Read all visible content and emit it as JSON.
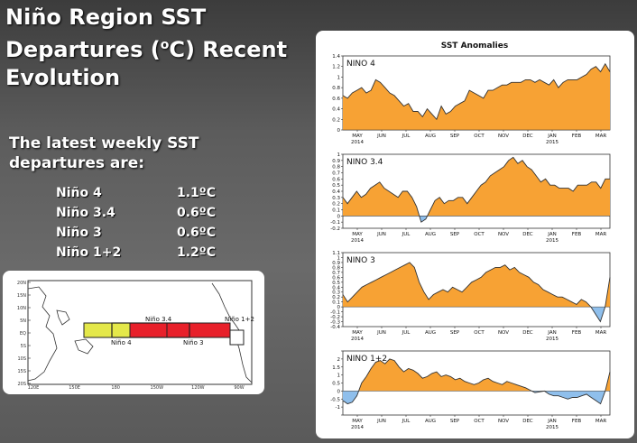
{
  "slide": {
    "title_line1": "Niño Region SST",
    "title_line2_pre": "Departures (",
    "title_line2_sup": "o",
    "title_line2_post": "C) Recent",
    "title_line3": "Evolution",
    "subtitle_line1": "The latest weekly SST",
    "subtitle_line2": "departures are:"
  },
  "departures": [
    {
      "region": "Niño 4",
      "value": "1.1ºC"
    },
    {
      "region": "Niño 3.4",
      "value": "0.6ºC"
    },
    {
      "region": "Niño 3",
      "value": "0.6ºC"
    },
    {
      "region": "Niño 1+2",
      "value": "1.2ºC"
    }
  ],
  "map": {
    "lat_labels": [
      "20N",
      "15N",
      "10N",
      "5N",
      "EQ",
      "5S",
      "10S",
      "15S",
      "20S"
    ],
    "lon_labels": [
      "120E",
      "150E",
      "180",
      "150W",
      "120W",
      "90W"
    ],
    "regions": [
      {
        "name": "Niño 4",
        "color": "#e4e84a"
      },
      {
        "name": "Niño 3.4",
        "color": "#00000000"
      },
      {
        "name": "Niño 3",
        "color": "#e8202a"
      },
      {
        "name": "Niño 1+2",
        "color": "#ffffff"
      }
    ]
  },
  "colors": {
    "positive": "#f7a234",
    "negative": "#8fbfec",
    "line": "#333333"
  },
  "chart_data": [
    {
      "type": "area",
      "title": "SST Anomalies",
      "panel_label": "NINO 4",
      "xticks": [
        "MAY",
        "JUN",
        "JUL",
        "AUG",
        "SEP",
        "OCT",
        "NOV",
        "DEC",
        "JAN",
        "FEB",
        "MAR"
      ],
      "year_labels": [
        "2014",
        "2015"
      ],
      "ylim": [
        0,
        1.4
      ],
      "yticks": [
        0,
        0.2,
        0.4,
        0.6,
        0.8,
        1,
        1.2,
        1.4
      ],
      "ytick_labels": [
        "0",
        "0.2",
        "0.4",
        "0.6",
        "0.8",
        "1",
        "1.2",
        "1.4"
      ],
      "values": [
        0.65,
        0.6,
        0.7,
        0.75,
        0.8,
        0.7,
        0.75,
        0.95,
        0.9,
        0.8,
        0.7,
        0.65,
        0.55,
        0.45,
        0.5,
        0.35,
        0.35,
        0.25,
        0.4,
        0.3,
        0.2,
        0.45,
        0.3,
        0.35,
        0.45,
        0.5,
        0.55,
        0.75,
        0.7,
        0.65,
        0.6,
        0.75,
        0.75,
        0.8,
        0.85,
        0.85,
        0.9,
        0.9,
        0.9,
        0.95,
        0.95,
        0.9,
        0.95,
        0.9,
        0.85,
        0.95,
        0.8,
        0.9,
        0.95,
        0.95,
        0.95,
        1.0,
        1.05,
        1.15,
        1.2,
        1.1,
        1.25,
        1.1
      ]
    },
    {
      "type": "area",
      "panel_label": "NINO 3.4",
      "xticks": [
        "MAY",
        "JUN",
        "JUL",
        "AUG",
        "SEP",
        "OCT",
        "NOV",
        "DEC",
        "JAN",
        "FEB",
        "MAR"
      ],
      "year_labels": [
        "2014",
        "2015"
      ],
      "ylim": [
        -0.2,
        1
      ],
      "yticks": [
        -0.2,
        -0.1,
        0,
        0.1,
        0.2,
        0.3,
        0.4,
        0.5,
        0.6,
        0.7,
        0.8,
        0.9,
        1
      ],
      "ytick_labels": [
        "-0.2",
        "-0.1",
        "0",
        "0.1",
        "0.2",
        "0.3",
        "0.4",
        "0.5",
        "0.6",
        "0.7",
        "0.8",
        "0.9",
        "1"
      ],
      "values": [
        0.3,
        0.2,
        0.3,
        0.4,
        0.3,
        0.35,
        0.45,
        0.5,
        0.55,
        0.45,
        0.4,
        0.35,
        0.3,
        0.4,
        0.4,
        0.3,
        0.15,
        -0.1,
        -0.05,
        0.1,
        0.25,
        0.3,
        0.2,
        0.25,
        0.25,
        0.3,
        0.3,
        0.2,
        0.3,
        0.4,
        0.5,
        0.55,
        0.65,
        0.7,
        0.75,
        0.8,
        0.9,
        0.95,
        0.85,
        0.9,
        0.8,
        0.75,
        0.65,
        0.55,
        0.6,
        0.5,
        0.5,
        0.45,
        0.45,
        0.45,
        0.4,
        0.5,
        0.5,
        0.5,
        0.55,
        0.55,
        0.45,
        0.6,
        0.6
      ]
    },
    {
      "type": "area",
      "panel_label": "NINO 3",
      "xticks": [
        "MAY",
        "JUN",
        "JUL",
        "AUG",
        "SEP",
        "OCT",
        "NOV",
        "DEC",
        "JAN",
        "FEB",
        "MAR"
      ],
      "year_labels": [
        "2014",
        "2015"
      ],
      "ylim": [
        -0.4,
        1.1
      ],
      "yticks": [
        -0.4,
        -0.3,
        -0.2,
        -0.1,
        0,
        0.1,
        0.2,
        0.3,
        0.4,
        0.5,
        0.6,
        0.7,
        0.8,
        0.9,
        1,
        1.1
      ],
      "ytick_labels": [
        "-0.4",
        "-0.3",
        "-0.2",
        "-0.1",
        "0",
        "0.1",
        "0.2",
        "0.3",
        "0.4",
        "0.5",
        "0.6",
        "0.7",
        "0.8",
        "0.9",
        "1",
        "1.1"
      ],
      "values": [
        0.25,
        0.1,
        0.2,
        0.3,
        0.4,
        0.45,
        0.5,
        0.55,
        0.6,
        0.65,
        0.7,
        0.75,
        0.8,
        0.85,
        0.9,
        0.8,
        0.5,
        0.3,
        0.15,
        0.25,
        0.3,
        0.35,
        0.3,
        0.4,
        0.35,
        0.3,
        0.4,
        0.5,
        0.55,
        0.6,
        0.7,
        0.75,
        0.8,
        0.8,
        0.85,
        0.75,
        0.8,
        0.7,
        0.65,
        0.6,
        0.5,
        0.45,
        0.35,
        0.3,
        0.25,
        0.2,
        0.2,
        0.15,
        0.1,
        0.05,
        0.15,
        0.1,
        0.0,
        -0.15,
        -0.3,
        0.0,
        0.6
      ]
    },
    {
      "type": "area",
      "panel_label": "NINO 1+2",
      "xticks": [
        "MAY",
        "JUN",
        "JUL",
        "AUG",
        "SEP",
        "OCT",
        "NOV",
        "DEC",
        "JAN",
        "FEB",
        "MAR"
      ],
      "year_labels": [
        "2014",
        "2015"
      ],
      "ylim": [
        -1.5,
        2.5
      ],
      "yticks": [
        -1.5,
        -1,
        -0.5,
        0,
        0.5,
        1,
        1.5,
        2,
        2.5
      ],
      "ytick_labels": [
        "",
        "-1",
        "-0.5",
        "0",
        "0.5",
        "1",
        "1.5",
        "2",
        ""
      ],
      "values": [
        -0.6,
        -0.8,
        -0.7,
        -0.3,
        0.5,
        0.9,
        1.4,
        1.8,
        1.9,
        1.7,
        2.0,
        1.9,
        1.5,
        1.2,
        1.4,
        1.3,
        1.1,
        0.8,
        0.9,
        1.1,
        1.2,
        0.9,
        1.0,
        0.9,
        0.7,
        0.8,
        0.6,
        0.5,
        0.4,
        0.5,
        0.7,
        0.8,
        0.6,
        0.5,
        0.4,
        0.6,
        0.5,
        0.4,
        0.3,
        0.2,
        0.05,
        -0.1,
        -0.05,
        0.0,
        -0.2,
        -0.3,
        -0.3,
        -0.4,
        -0.5,
        -0.4,
        -0.4,
        -0.3,
        -0.2,
        -0.4,
        -0.6,
        -0.8,
        0.0,
        1.2
      ]
    }
  ]
}
